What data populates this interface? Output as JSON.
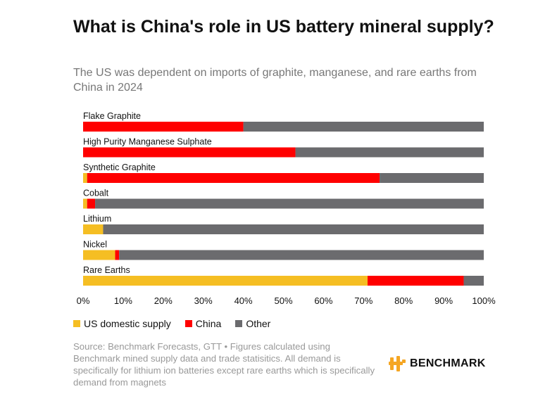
{
  "header": {
    "title": "What is China's role in US battery mineral supply?",
    "subtitle": "The US was dependent on imports of graphite, manganese, and rare earths from China in 2024"
  },
  "chart_data": {
    "type": "bar",
    "orientation": "horizontal",
    "stacked": true,
    "categories": [
      "Flake Graphite",
      "High Purity Manganese Sulphate",
      "Synthetic Graphite",
      "Cobalt",
      "Lithium",
      "Nickel",
      "Rare Earths"
    ],
    "series": [
      {
        "name": "US domestic supply",
        "color": "#F5BE23",
        "values": [
          0,
          0,
          1,
          1,
          5,
          8,
          71
        ]
      },
      {
        "name": "China",
        "color": "#FF0000",
        "values": [
          40,
          53,
          73,
          2,
          0,
          1,
          24
        ]
      },
      {
        "name": "Other",
        "color": "#6B6B6E",
        "values": [
          60,
          47,
          26,
          97,
          95,
          91,
          5
        ]
      }
    ],
    "xlim": [
      0,
      100
    ],
    "xticks": [
      "0%",
      "10%",
      "20%",
      "30%",
      "40%",
      "50%",
      "60%",
      "70%",
      "80%",
      "90%",
      "100%"
    ],
    "legend_position": "bottom-left"
  },
  "footer": {
    "source": "Source: Benchmark Forecasts, GTT • Figures calculated using Benchmark mined supply data and trade statisitics. All demand is specifically for lithium ion batteries except rare earths which is specifically demand from magnets",
    "logo_text": "BENCHMARK",
    "logo_icon": "benchmark-logo-icon",
    "logo_color": "#F5A623"
  }
}
